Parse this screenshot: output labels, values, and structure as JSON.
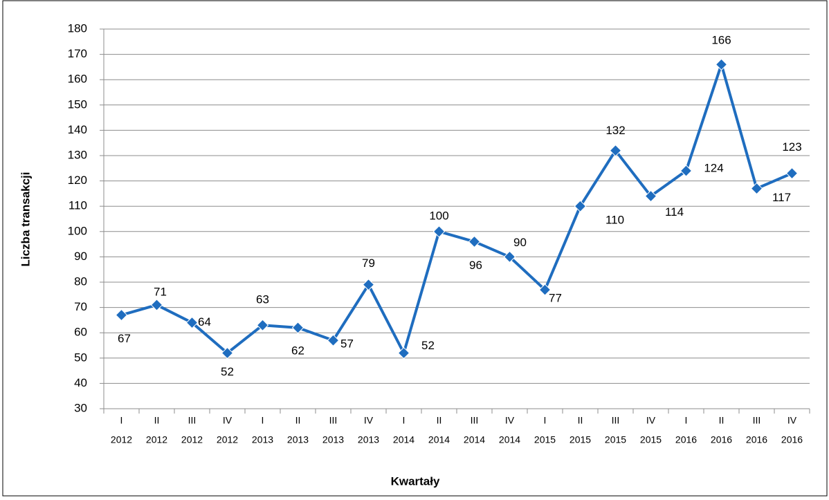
{
  "chart_data": {
    "type": "line",
    "x_label": "Kwartały",
    "y_label": "Liczba transakcji",
    "categories": [
      [
        "I",
        "2012"
      ],
      [
        "II",
        "2012"
      ],
      [
        "III",
        "2012"
      ],
      [
        "IV",
        "2012"
      ],
      [
        "I",
        "2013"
      ],
      [
        "II",
        "2013"
      ],
      [
        "III",
        "2013"
      ],
      [
        "IV",
        "2013"
      ],
      [
        "I",
        "2014"
      ],
      [
        "II",
        "2014"
      ],
      [
        "III",
        "2014"
      ],
      [
        "IV",
        "2014"
      ],
      [
        "I",
        "2015"
      ],
      [
        "II",
        "2015"
      ],
      [
        "III",
        "2015"
      ],
      [
        "IV",
        "2015"
      ],
      [
        "I",
        "2016"
      ],
      [
        "II",
        "2016"
      ],
      [
        "III",
        "2016"
      ],
      [
        "IV",
        "2016"
      ]
    ],
    "values": [
      67,
      71,
      64,
      52,
      63,
      62,
      57,
      79,
      52,
      100,
      96,
      90,
      77,
      110,
      132,
      114,
      124,
      166,
      117,
      123
    ],
    "color": "#1f6dbf",
    "ylim": [
      30,
      180
    ],
    "yticks": [
      30,
      40,
      50,
      60,
      70,
      80,
      90,
      100,
      110,
      120,
      130,
      140,
      150,
      160,
      170,
      180
    ],
    "grid": true
  }
}
